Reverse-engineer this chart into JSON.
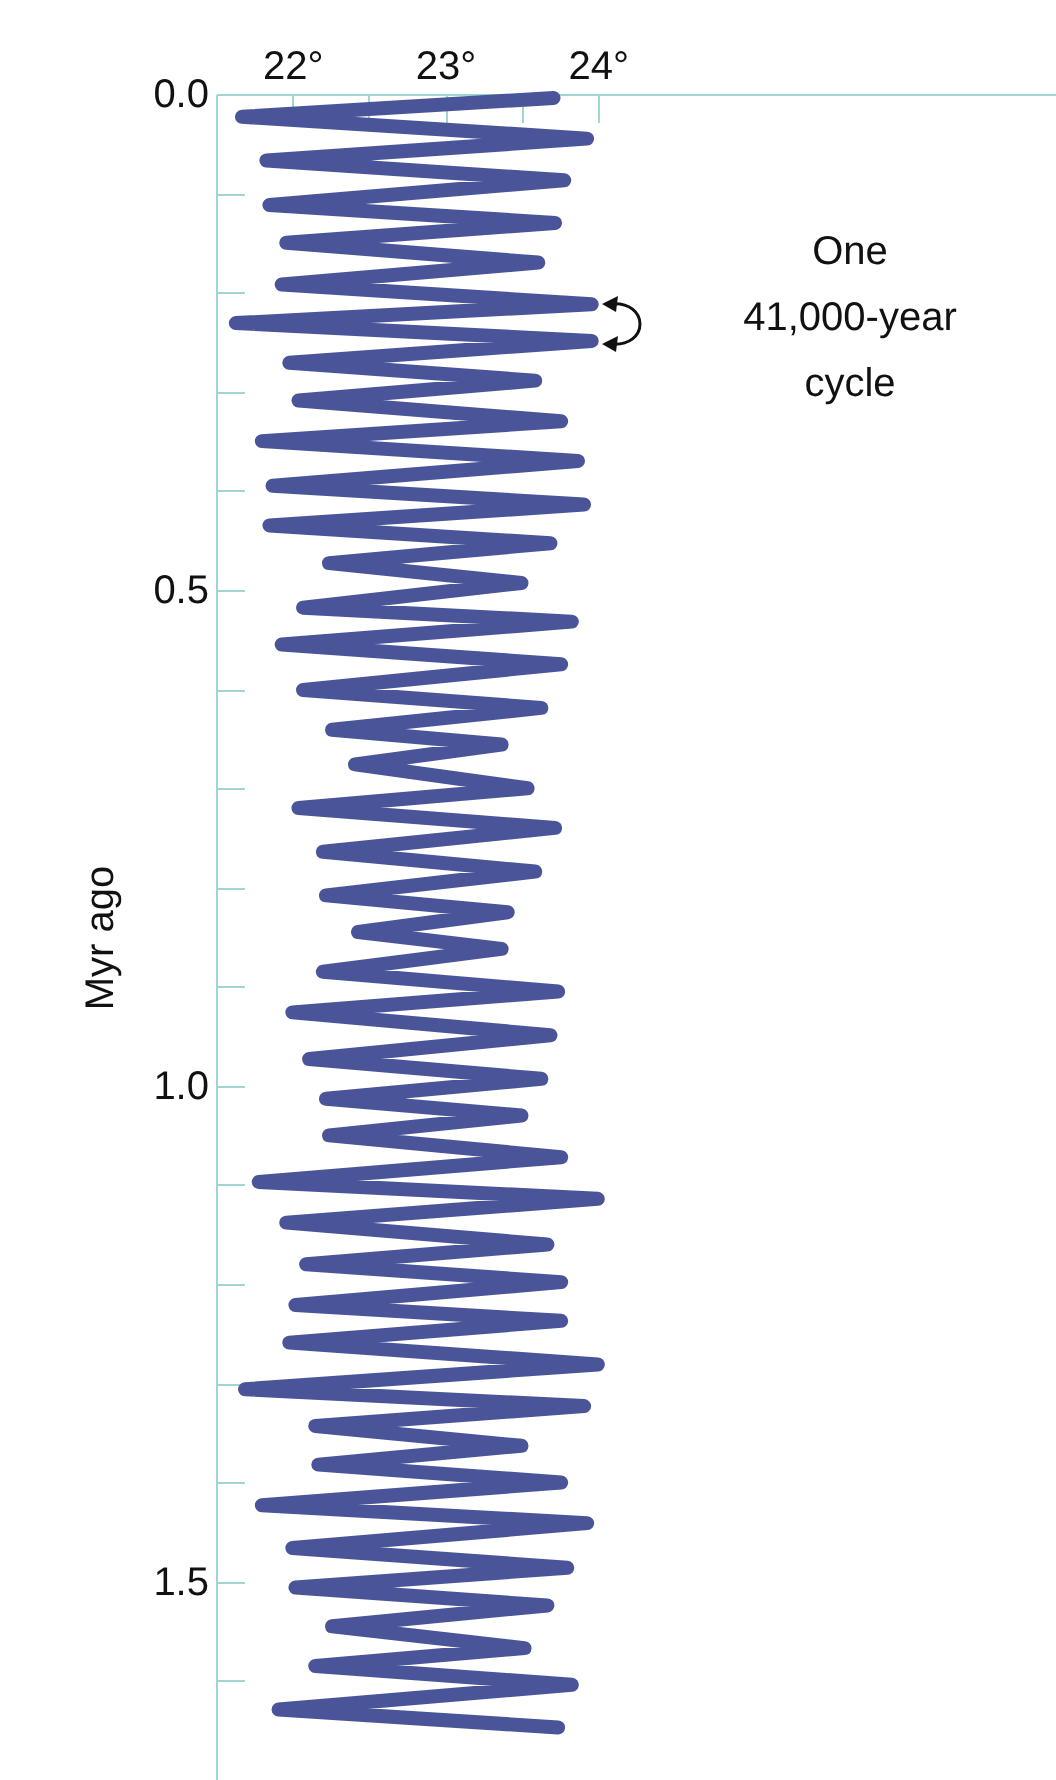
{
  "chart_data": {
    "type": "line",
    "ylabel": "Myr ago",
    "x": [
      23.71,
      21.67,
      23.93,
      21.83,
      23.78,
      21.85,
      23.72,
      21.96,
      23.61,
      21.93,
      23.96,
      21.63,
      23.96,
      21.98,
      23.59,
      22.04,
      23.76,
      21.8,
      23.87,
      21.87,
      23.91,
      21.85,
      23.69,
      22.24,
      23.5,
      22.07,
      23.83,
      21.93,
      23.76,
      22.07,
      23.63,
      22.26,
      23.37,
      22.41,
      23.54,
      22.04,
      23.72,
      22.2,
      23.59,
      22.22,
      23.41,
      22.43,
      23.37,
      22.2,
      23.74,
      22.0,
      23.69,
      22.11,
      23.63,
      22.22,
      23.5,
      22.24,
      23.76,
      21.78,
      24.0,
      21.96,
      23.67,
      22.09,
      23.76,
      22.02,
      23.76,
      21.98,
      24.0,
      21.69,
      23.91,
      22.15,
      23.5,
      22.17,
      23.76,
      21.8,
      23.93,
      22.0,
      23.8,
      22.02,
      23.67,
      22.26,
      23.52,
      22.15,
      23.83,
      21.91,
      23.74
    ],
    "series": [
      {
        "color": "#4a5599",
        "values": [
          0.004,
          0.023,
          0.045,
          0.067,
          0.087,
          0.112,
          0.13,
          0.15,
          0.17,
          0.192,
          0.212,
          0.231,
          0.249,
          0.271,
          0.289,
          0.309,
          0.33,
          0.35,
          0.37,
          0.395,
          0.414,
          0.435,
          0.453,
          0.473,
          0.493,
          0.518,
          0.532,
          0.555,
          0.575,
          0.601,
          0.619,
          0.641,
          0.656,
          0.676,
          0.7,
          0.72,
          0.74,
          0.764,
          0.784,
          0.808,
          0.825,
          0.845,
          0.862,
          0.885,
          0.905,
          0.926,
          0.949,
          0.973,
          0.993,
          1.013,
          1.03,
          1.05,
          1.072,
          1.097,
          1.114,
          1.138,
          1.16,
          1.18,
          1.198,
          1.221,
          1.237,
          1.259,
          1.281,
          1.306,
          1.323,
          1.343,
          1.363,
          1.382,
          1.4,
          1.423,
          1.441,
          1.466,
          1.486,
          1.506,
          1.524,
          1.545,
          1.567,
          1.585,
          1.604,
          1.629,
          1.647
        ]
      }
    ],
    "xlim": [
      21.5,
      27
    ],
    "xticks": [
      {
        "value": 22,
        "label": "22°"
      },
      {
        "value": 22.5,
        "label": null
      },
      {
        "value": 23,
        "label": "23°"
      },
      {
        "value": 23.5,
        "label": null
      },
      {
        "value": 24,
        "label": "24°"
      }
    ],
    "ylim": [
      1.7,
      0
    ],
    "yticks": [
      {
        "value": 0,
        "label": "0.0"
      },
      {
        "value": 0.1,
        "label": null
      },
      {
        "value": 0.2,
        "label": null
      },
      {
        "value": 0.3,
        "label": null
      },
      {
        "value": 0.4,
        "label": null
      },
      {
        "value": 0.5,
        "label": "0.5"
      },
      {
        "value": 0.6,
        "label": null
      },
      {
        "value": 0.7,
        "label": null
      },
      {
        "value": 0.8,
        "label": null
      },
      {
        "value": 0.9,
        "label": null
      },
      {
        "value": 1,
        "label": "1.0"
      },
      {
        "value": 1.1,
        "label": null
      },
      {
        "value": 1.2,
        "label": null
      },
      {
        "value": 1.3,
        "label": null
      },
      {
        "value": 1.4,
        "label": null
      },
      {
        "value": 1.5,
        "label": "1.5"
      },
      {
        "value": 1.6,
        "label": null
      }
    ],
    "grid": false,
    "line_style": "solid",
    "annotations": [
      "One 41,000-year cycle"
    ]
  }
}
